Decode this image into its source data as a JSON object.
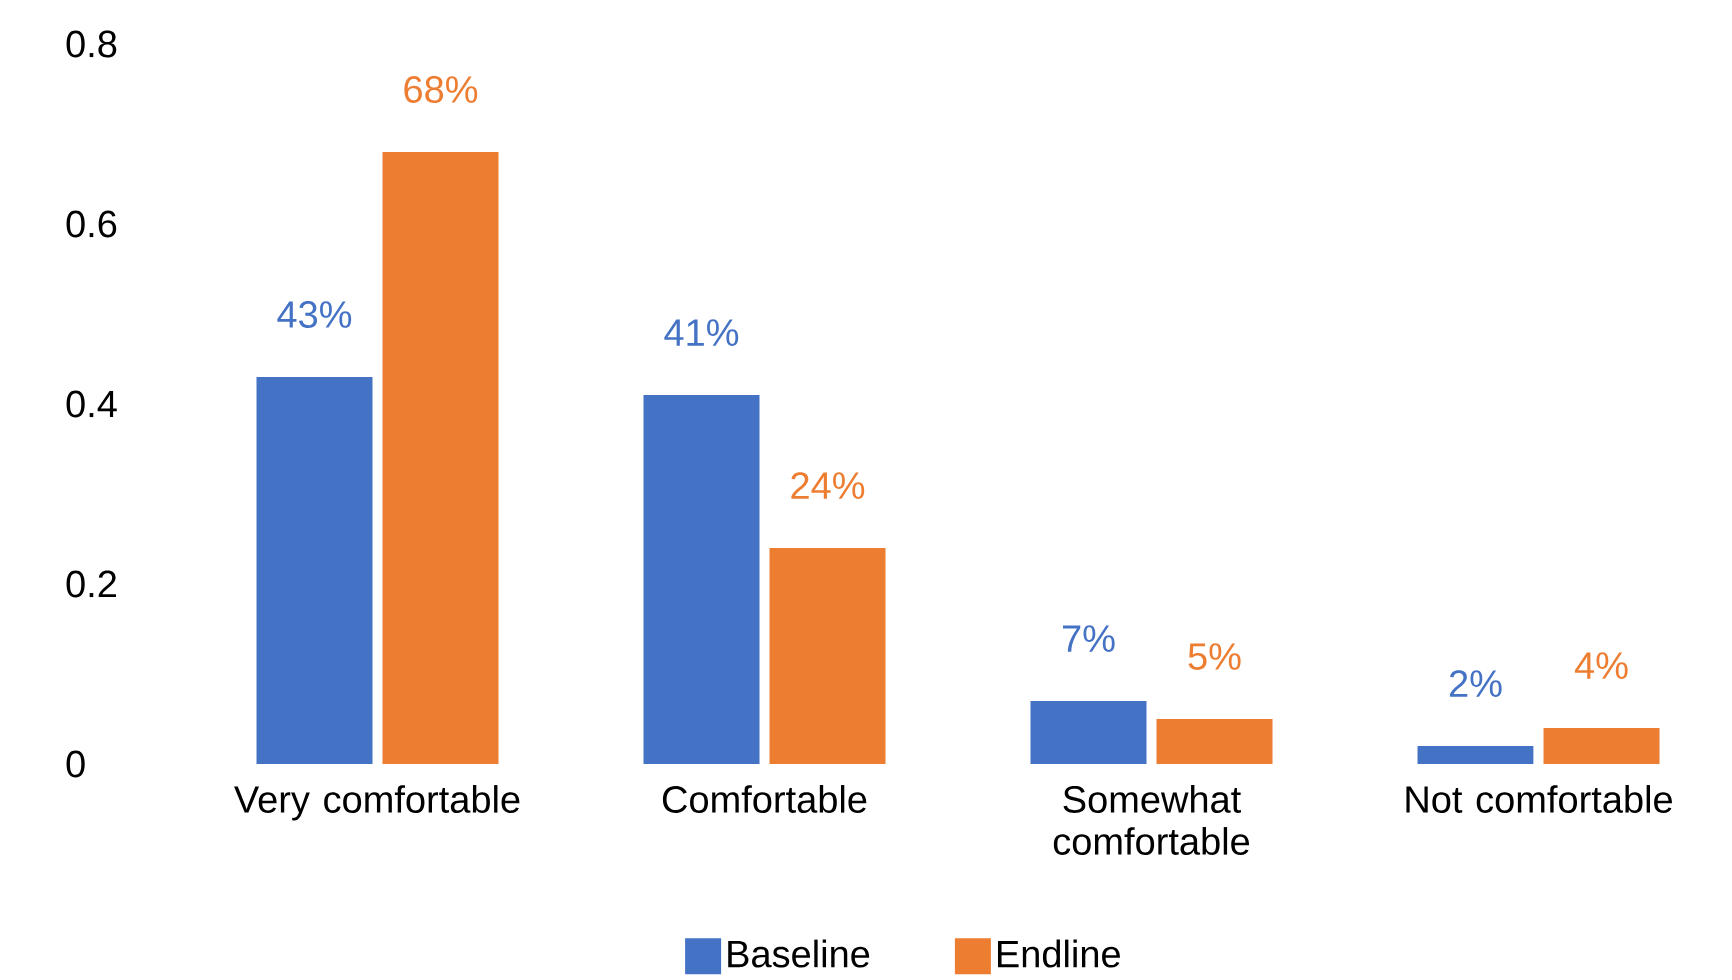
{
  "chart_data": {
    "type": "bar",
    "categories": [
      "Very comfortable",
      "Comfortable",
      "Somewhat comfortable",
      "Not comfortable"
    ],
    "series": [
      {
        "name": "Baseline",
        "color": "#4472c4",
        "values": [
          0.43,
          0.41,
          0.07,
          0.02
        ],
        "value_labels": [
          "43%",
          "41%",
          "7%",
          "2%"
        ]
      },
      {
        "name": "Endline",
        "color": "#ed7d31",
        "values": [
          0.68,
          0.24,
          0.05,
          0.04
        ],
        "value_labels": [
          "68%",
          "24%",
          "5%",
          "4%"
        ]
      }
    ],
    "ylim": [
      0,
      0.8
    ],
    "yticks": [
      0,
      0.2,
      0.4,
      0.6,
      0.8
    ],
    "grid": false,
    "legend": "bottom"
  }
}
